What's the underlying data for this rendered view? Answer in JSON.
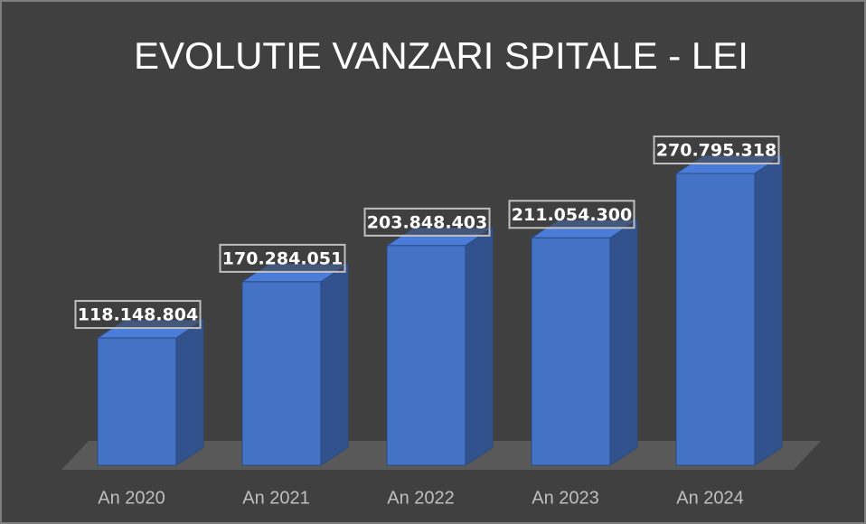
{
  "chart_data": {
    "type": "bar3d",
    "title": "EVOLUTIE VANZARI SPITALE - LEI",
    "categories": [
      "An 2020",
      "An 2021",
      "An 2022",
      "An 2023",
      "An 2024"
    ],
    "values": [
      118148804,
      170284051,
      203848403,
      211054300,
      270795318
    ],
    "value_labels": [
      "118.148.804",
      "170.284.051",
      "203.848.403",
      "211.054.300",
      "270.795.318"
    ],
    "color": "#4472c4"
  }
}
